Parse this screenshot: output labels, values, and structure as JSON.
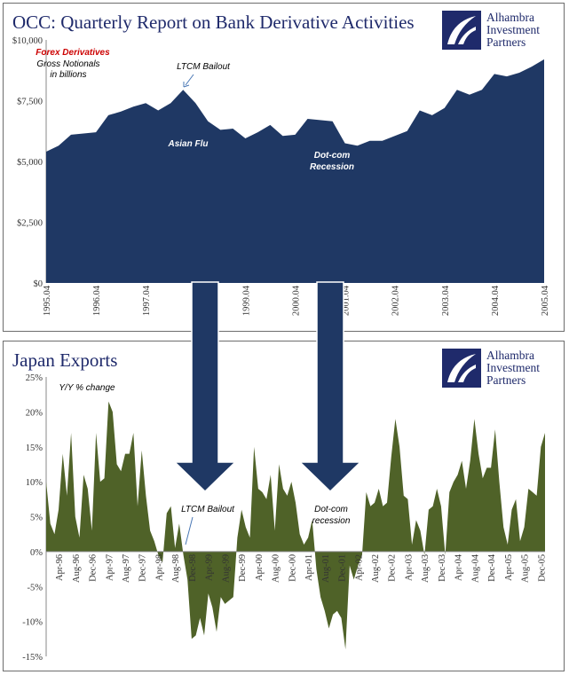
{
  "colors": {
    "navy": "#1f3864",
    "olive": "#4f6228",
    "title": "#1f2a6b",
    "red": "#cc0000"
  },
  "logo": {
    "line1": "Alhambra",
    "line2": "Investment",
    "line3": "Partners"
  },
  "top": {
    "title": "OCC: Quarterly Report on Bank Derivative Activities",
    "annotations": {
      "forex": "Forex Derivatives",
      "gross1": "Gross Notionals",
      "gross2": "in billions",
      "ltcm": "LTCM Bailout",
      "asian": "Asian Flu",
      "dotcom1": "Dot-com",
      "dotcom2": "Recession"
    },
    "chart_data": {
      "type": "area",
      "ylim": [
        0,
        10000
      ],
      "yticks": [
        "$0",
        "$2,500",
        "$5,000",
        "$7,500",
        "$10,000"
      ],
      "xticks": [
        "1995.04",
        "1996.04",
        "1997.04",
        "1999.04",
        "2000.04",
        "2001.04",
        "2002.04",
        "2003.04",
        "2004.04",
        "2005.04"
      ],
      "x_start": "1995.04",
      "x_end": "2005.04",
      "values": [
        5400,
        5650,
        6100,
        6150,
        6200,
        6900,
        7050,
        7250,
        7400,
        7100,
        7400,
        7950,
        7400,
        6650,
        6300,
        6350,
        5950,
        6200,
        6500,
        6050,
        6100,
        6750,
        6700,
        6650,
        5750,
        5650,
        5850,
        5850,
        6050,
        6250,
        7100,
        6900,
        7200,
        7950,
        7750,
        7950,
        8600,
        8500,
        8650,
        8900,
        9200
      ]
    }
  },
  "bottom": {
    "title": "Japan Exports",
    "annotations": {
      "yoy": "Y/Y % change",
      "ltcm": "LTCM Bailout",
      "dotcom1": "Dot-com",
      "dotcom2": "recession"
    },
    "chart_data": {
      "type": "area",
      "ylim": [
        -15,
        25
      ],
      "yticks": [
        "-15%",
        "-10%",
        "-5%",
        "0%",
        "5%",
        "10%",
        "15%",
        "20%",
        "25%"
      ],
      "xticks": [
        "Apr-96",
        "Aug-96",
        "Dec-96",
        "Apr-97",
        "Aug-97",
        "Dec-97",
        "Apr-98",
        "Aug-98",
        "Dec-98",
        "Apr-99",
        "Aug-99",
        "Dec-99",
        "Apr-00",
        "Aug-00",
        "Dec-00",
        "Apr-01",
        "Aug-01",
        "Dec-01",
        "Apr-02",
        "Aug-02",
        "Dec-02",
        "Apr-03",
        "Aug-03",
        "Dec-03",
        "Apr-04",
        "Aug-04",
        "Dec-04",
        "Apr-05",
        "Aug-05",
        "Dec-05"
      ],
      "x_start": "Jan-96",
      "x_end": "Dec-05",
      "values": [
        10,
        4,
        2.5,
        6,
        14,
        8,
        17,
        5,
        2,
        11,
        9,
        3,
        17,
        10,
        10.5,
        21.5,
        20,
        12.5,
        11.5,
        14,
        14,
        17,
        6.5,
        14.5,
        8,
        3,
        1.5,
        -0.5,
        -1.5,
        5.5,
        6.5,
        0.5,
        4,
        -0.5,
        -4,
        -12.5,
        -12,
        -9.5,
        -12,
        -6,
        -8,
        -11.5,
        -6.5,
        -7.5,
        -7,
        -6.5,
        2,
        6,
        3.5,
        2,
        15,
        9,
        8.5,
        7.5,
        11,
        3,
        12.5,
        9,
        8,
        10,
        7,
        2.5,
        1,
        2,
        4.5,
        -2.5,
        -6.5,
        -8.5,
        -11,
        -9,
        -8.5,
        -9.5,
        -14,
        -2,
        -4,
        -2,
        -0.5,
        8.5,
        6.5,
        7,
        9,
        6.5,
        7,
        13.5,
        19,
        15,
        8,
        7.5,
        1,
        4.5,
        3,
        -0.5,
        6,
        6.5,
        9,
        6.5,
        -0.5,
        8.5,
        10,
        11,
        13,
        9,
        13,
        19,
        14,
        10.5,
        12,
        12,
        17.5,
        10,
        3.5,
        1,
        6,
        7.5,
        1.5,
        3.5,
        9,
        8.5,
        8,
        15,
        17
      ]
    }
  },
  "arrows": {
    "left_x": 231,
    "right_x": 372
  }
}
